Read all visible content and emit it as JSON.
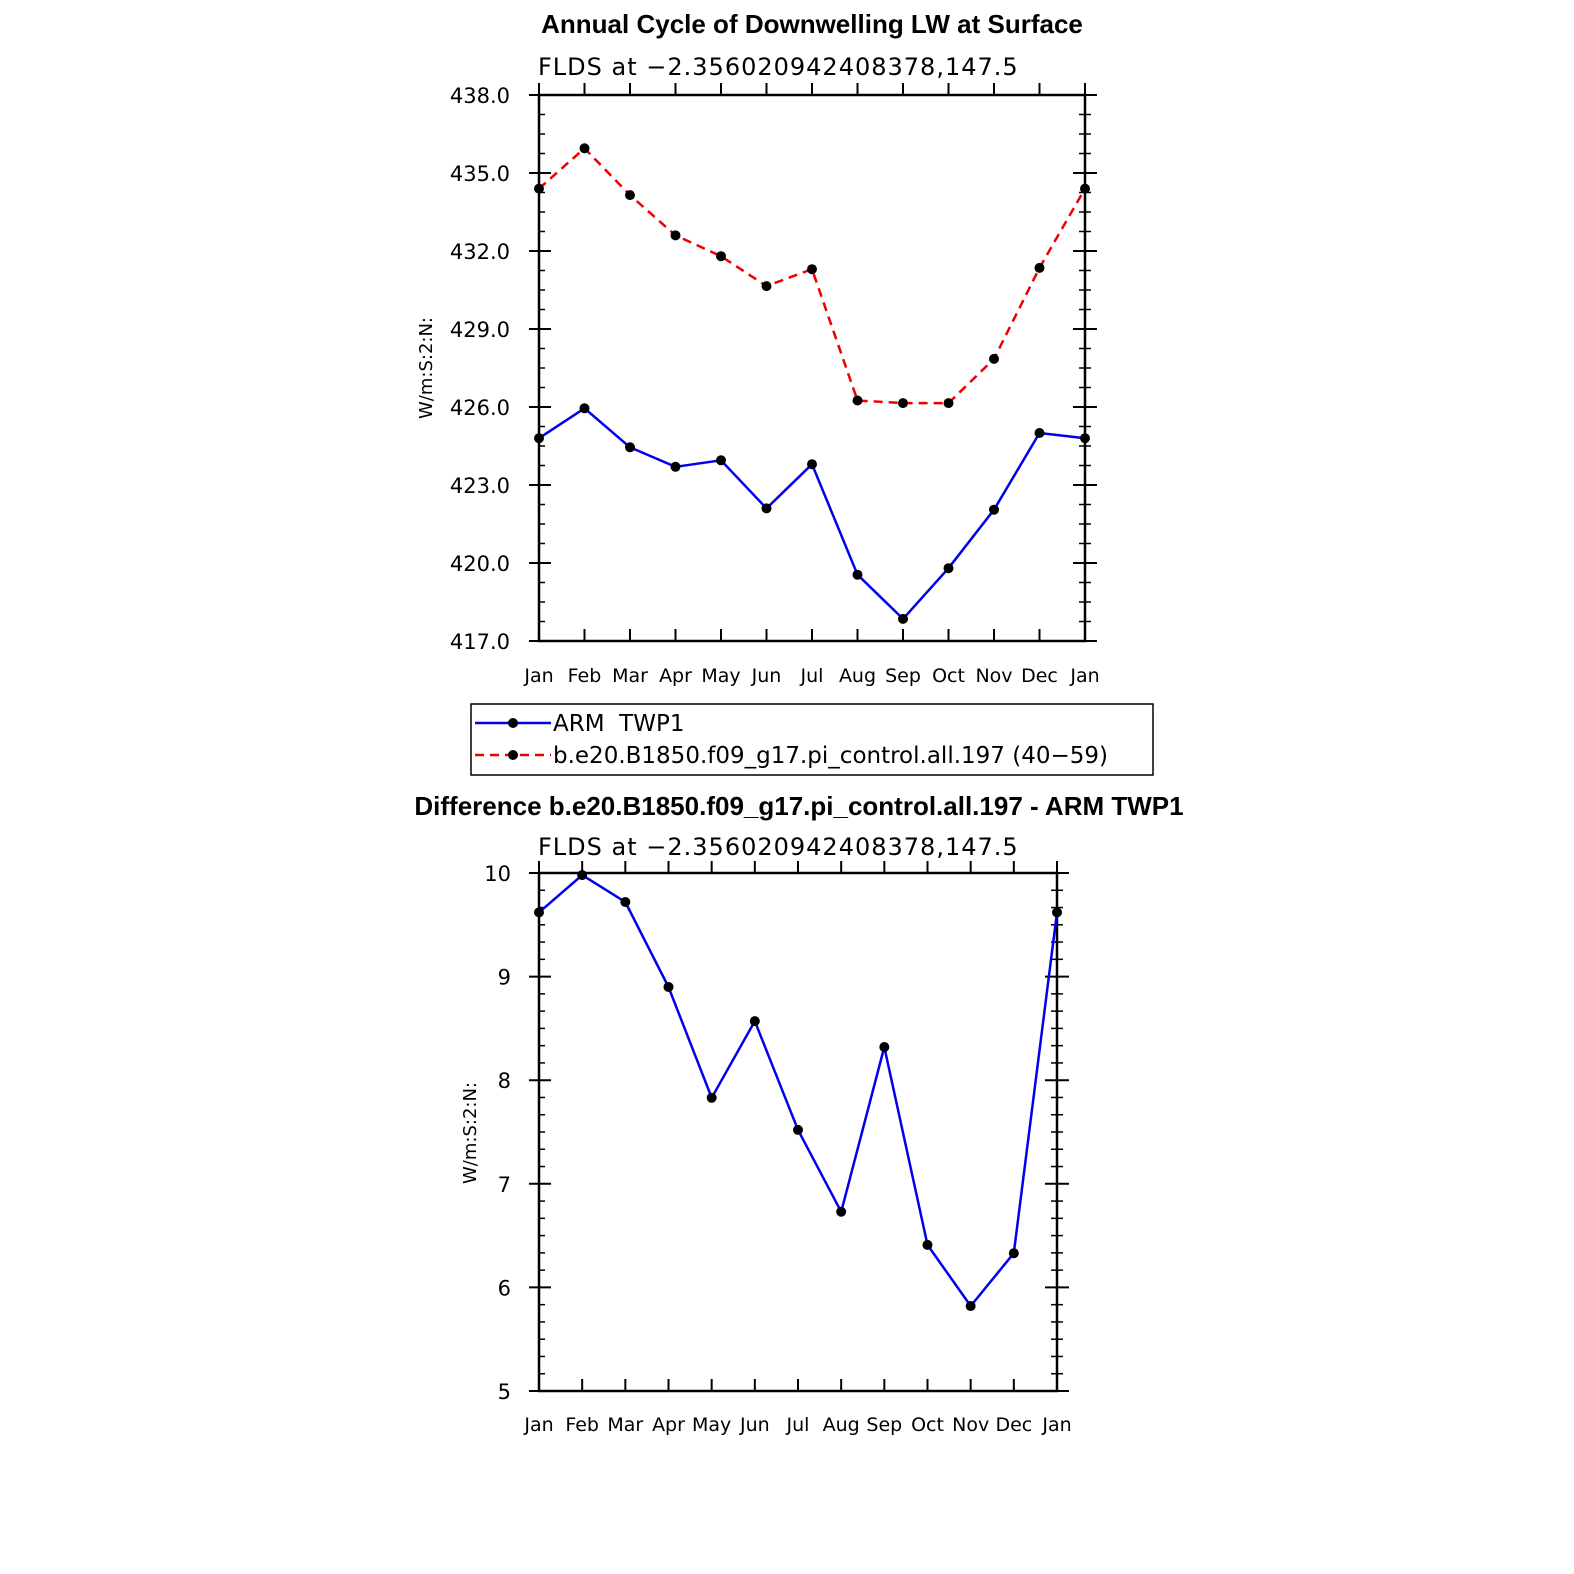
{
  "charts": [
    {
      "title": "Annual Cycle of Downwelling LW at Surface",
      "subtitle": "FLDS at −2.356020942408378,147.5",
      "ylabel": "W/m:S:2:N:"
    },
    {
      "title": "Difference b.e20.B1850.f09_g17.pi_control.all.197 - ARM TWP1",
      "subtitle": "FLDS at −2.356020942408378,147.5",
      "ylabel": "W/m:S:2:N:"
    }
  ],
  "legend": {
    "items": [
      {
        "label": "ARM  TWP1",
        "color": "#0000ee",
        "dash": "solid"
      },
      {
        "label": "b.e20.B1850.f09_g17.pi_control.all.197 (40−59)",
        "color": "#ee0000",
        "dash": "dashed"
      }
    ]
  },
  "chart_data": [
    {
      "type": "line",
      "title": "Annual Cycle of Downwelling LW at Surface",
      "subtitle": "FLDS at −2.356020942408378,147.5",
      "xlabel": "",
      "ylabel": "W/m:S:2:N:",
      "categories": [
        "Jan",
        "Feb",
        "Mar",
        "Apr",
        "May",
        "Jun",
        "Jul",
        "Aug",
        "Sep",
        "Oct",
        "Nov",
        "Dec",
        "Jan"
      ],
      "ylim": [
        417.0,
        438.0
      ],
      "yticks": [
        417.0,
        420.0,
        423.0,
        426.0,
        429.0,
        432.0,
        435.0,
        438.0
      ],
      "ytick_labels": [
        "417.0",
        "420.0",
        "423.0",
        "426.0",
        "429.0",
        "432.0",
        "435.0",
        "438.0"
      ],
      "series": [
        {
          "name": "ARM  TWP1",
          "color": "#0000ee",
          "dash": "solid",
          "values": [
            424.8,
            425.95,
            424.45,
            423.7,
            423.95,
            422.1,
            423.8,
            419.55,
            417.85,
            419.8,
            422.05,
            425.0,
            424.8
          ]
        },
        {
          "name": "b.e20.B1850.f09_g17.pi_control.all.197 (40−59)",
          "color": "#ee0000",
          "dash": "dashed",
          "values": [
            434.4,
            435.95,
            434.15,
            432.6,
            431.8,
            430.65,
            431.3,
            426.25,
            426.15,
            426.15,
            427.85,
            431.35,
            434.4
          ]
        }
      ],
      "grid": false,
      "legend_position": "bottom"
    },
    {
      "type": "line",
      "title": "Difference b.e20.B1850.f09_g17.pi_control.all.197 - ARM TWP1",
      "subtitle": "FLDS at −2.356020942408378,147.5",
      "xlabel": "",
      "ylabel": "W/m:S:2:N:",
      "categories": [
        "Jan",
        "Feb",
        "Mar",
        "Apr",
        "May",
        "Jun",
        "Jul",
        "Aug",
        "Sep",
        "Oct",
        "Nov",
        "Dec",
        "Jan"
      ],
      "ylim": [
        5,
        10
      ],
      "yticks": [
        5,
        6,
        7,
        8,
        9,
        10
      ],
      "ytick_labels": [
        "5",
        "6",
        "7",
        "8",
        "9",
        "10"
      ],
      "series": [
        {
          "color": "#0000ee",
          "dash": "solid",
          "values": [
            9.62,
            9.98,
            9.72,
            8.9,
            7.83,
            8.57,
            7.52,
            6.73,
            8.32,
            6.41,
            5.82,
            6.33,
            9.62
          ]
        }
      ],
      "grid": false
    }
  ]
}
